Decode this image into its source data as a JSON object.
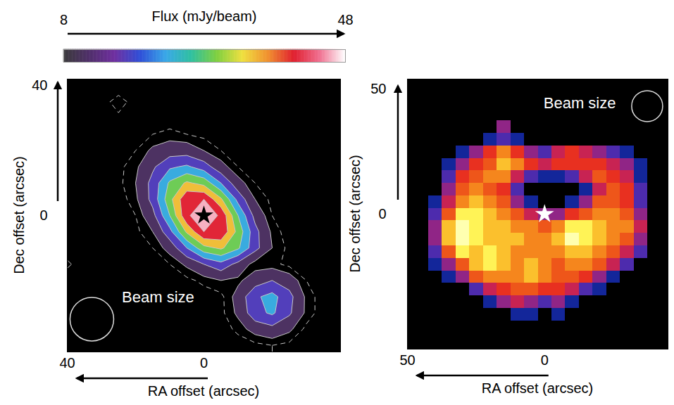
{
  "chart_data": [
    {
      "type": "contour",
      "x_label": "RA offset (arcsec)",
      "y_label": "Dec offset (arcsec)",
      "xlim": [
        40,
        -40
      ],
      "ylim": [
        -42,
        42
      ],
      "xticks": [
        40,
        0
      ],
      "yticks": [
        40,
        0
      ],
      "colorbar": {
        "label": "Flux (mJy/beam)",
        "range": [
          8,
          48
        ],
        "ticks": [
          8,
          48
        ]
      },
      "contour_levels": [
        5,
        8,
        14,
        20,
        26,
        32,
        38,
        44
      ],
      "dashed_levels": [
        5
      ],
      "ra": [
        40,
        35,
        30,
        25,
        20,
        15,
        10,
        5,
        0,
        -5,
        -10,
        -15,
        -20,
        -25,
        -30,
        -35,
        -40
      ],
      "dec": [
        40,
        35,
        30,
        25,
        20,
        15,
        10,
        5,
        0,
        -5,
        -10,
        -15,
        -20,
        -25,
        -30,
        -35,
        -40
      ],
      "flux": [
        [
          2,
          2,
          2,
          2,
          2,
          2,
          2,
          2,
          2,
          2,
          2,
          2,
          2,
          2,
          2,
          2,
          2
        ],
        [
          2,
          2,
          3,
          7,
          3,
          2,
          2,
          2,
          2,
          2,
          2,
          2,
          2,
          2,
          2,
          2,
          2
        ],
        [
          2,
          2,
          2,
          4,
          3,
          3,
          3,
          3,
          2,
          2,
          2,
          2,
          2,
          2,
          2,
          2,
          2
        ],
        [
          2,
          2,
          2,
          3,
          4,
          5,
          6,
          5,
          4,
          3,
          2,
          2,
          2,
          2,
          2,
          2,
          2
        ],
        [
          2,
          2,
          2,
          3,
          5,
          9,
          11,
          11,
          8,
          5,
          3,
          2,
          2,
          2,
          2,
          2,
          2
        ],
        [
          2,
          2,
          2,
          4,
          7,
          13,
          19,
          21,
          17,
          10,
          5,
          3,
          2,
          2,
          2,
          2,
          2
        ],
        [
          2,
          2,
          2,
          4,
          8,
          16,
          27,
          33,
          30,
          20,
          10,
          5,
          3,
          2,
          2,
          2,
          2
        ],
        [
          2,
          2,
          2,
          3,
          7,
          16,
          30,
          43,
          44,
          33,
          18,
          8,
          4,
          2,
          2,
          2,
          2
        ],
        [
          2,
          2,
          2,
          3,
          5,
          12,
          26,
          43,
          48,
          43,
          26,
          12,
          5,
          3,
          2,
          2,
          2
        ],
        [
          2,
          2,
          2,
          2,
          4,
          8,
          18,
          33,
          44,
          43,
          30,
          16,
          7,
          3,
          2,
          2,
          2
        ],
        [
          2,
          2,
          2,
          2,
          3,
          5,
          10,
          20,
          30,
          33,
          27,
          16,
          8,
          4,
          2,
          2,
          2
        ],
        [
          6,
          2,
          2,
          2,
          2,
          3,
          5,
          9,
          14,
          18,
          12,
          6,
          6,
          4,
          3,
          2,
          2
        ],
        [
          2,
          2,
          2,
          2,
          2,
          2,
          3,
          4,
          6,
          8,
          7,
          11,
          14,
          11,
          5,
          2,
          2
        ],
        [
          2,
          2,
          2,
          2,
          2,
          2,
          2,
          2,
          3,
          4,
          10,
          19,
          22,
          16,
          7,
          3,
          2
        ],
        [
          2,
          2,
          2,
          2,
          2,
          2,
          2,
          2,
          2,
          4,
          9,
          18,
          21,
          15,
          7,
          3,
          2
        ],
        [
          2,
          2,
          2,
          2,
          2,
          2,
          2,
          2,
          2,
          3,
          6,
          10,
          12,
          9,
          4,
          2,
          2
        ],
        [
          2,
          2,
          2,
          2,
          2,
          2,
          2,
          2,
          2,
          2,
          3,
          4,
          5,
          4,
          3,
          2,
          2
        ]
      ],
      "beam": {
        "label": "Beam size",
        "diameter": 12.8
      },
      "source": {
        "ra": 0,
        "dec": 0,
        "marker": "star",
        "color": "#000000"
      }
    },
    {
      "type": "image",
      "x_label": "RA offset (arcsec)",
      "y_label": "Dec offset (arcsec)",
      "xlim": [
        50,
        -45
      ],
      "ylim": [
        -54,
        54
      ],
      "xticks": [
        50,
        0
      ],
      "yticks": [
        50,
        0
      ],
      "intensity_range": [
        0,
        10
      ],
      "ra": [
        45,
        40,
        35,
        30,
        25,
        20,
        15,
        10,
        5,
        0,
        -5,
        -10,
        -15,
        -20,
        -25,
        -30,
        -35,
        -40
      ],
      "dec": [
        50,
        45,
        40,
        35,
        30,
        25,
        20,
        15,
        10,
        5,
        0,
        -5,
        -10,
        -15,
        -20,
        -25,
        -30,
        -35,
        -40,
        -45,
        -50
      ],
      "intensity": [
        [
          0,
          0,
          0,
          0,
          0,
          0,
          0,
          0,
          0,
          0,
          0,
          0,
          0,
          0,
          0,
          0,
          0,
          0
        ],
        [
          0,
          0,
          0,
          0,
          0,
          0,
          0,
          0,
          0,
          0,
          0,
          0,
          0,
          0,
          0,
          0,
          0,
          0
        ],
        [
          0,
          0,
          0,
          0,
          0,
          0,
          0,
          0,
          0,
          0,
          0,
          0,
          0,
          0,
          0,
          0,
          0,
          0
        ],
        [
          0,
          0,
          0,
          0,
          0,
          0,
          3,
          0,
          0,
          0,
          0,
          0,
          0,
          0,
          0,
          0,
          0,
          0
        ],
        [
          0,
          0,
          0,
          0,
          0,
          1,
          2,
          1,
          0,
          0,
          0,
          0,
          0,
          0,
          0,
          0,
          0,
          0
        ],
        [
          0,
          0,
          0,
          1,
          3,
          5,
          7,
          5,
          3,
          2,
          4,
          5,
          4,
          3,
          2,
          1,
          0,
          0
        ],
        [
          0,
          0,
          1,
          3,
          5,
          6,
          8,
          7,
          5,
          4,
          5,
          5,
          5,
          5,
          4,
          3,
          1,
          0
        ],
        [
          0,
          0,
          2,
          5,
          6,
          7,
          7,
          4,
          2,
          1,
          1,
          2,
          4,
          6,
          5,
          4,
          1,
          0
        ],
        [
          0,
          0,
          3,
          6,
          7,
          6,
          5,
          2,
          0,
          0,
          0,
          0,
          1,
          4,
          6,
          5,
          2,
          0
        ],
        [
          0,
          1,
          4,
          7,
          8,
          7,
          6,
          3,
          1,
          0,
          0,
          1,
          3,
          6,
          6,
          5,
          2,
          0
        ],
        [
          0,
          2,
          6,
          9,
          9,
          8,
          7,
          6,
          4,
          3,
          3,
          5,
          6,
          7,
          7,
          6,
          3,
          0
        ],
        [
          0,
          3,
          8,
          10,
          9,
          8,
          8,
          7,
          7,
          6,
          7,
          9,
          9,
          8,
          7,
          7,
          4,
          0
        ],
        [
          0,
          3,
          8,
          10,
          9,
          8,
          8,
          8,
          7,
          7,
          8,
          10,
          9,
          8,
          7,
          6,
          3,
          0
        ],
        [
          0,
          2,
          6,
          9,
          8,
          9,
          8,
          7,
          7,
          7,
          7,
          8,
          8,
          7,
          6,
          4,
          2,
          0
        ],
        [
          0,
          1,
          3,
          6,
          8,
          9,
          8,
          7,
          8,
          7,
          6,
          7,
          7,
          6,
          4,
          2,
          0,
          0
        ],
        [
          0,
          0,
          1,
          3,
          6,
          7,
          7,
          7,
          8,
          7,
          6,
          6,
          5,
          3,
          1,
          0,
          0,
          0
        ],
        [
          0,
          0,
          0,
          0,
          2,
          4,
          5,
          6,
          6,
          5,
          5,
          4,
          2,
          1,
          0,
          0,
          0,
          0
        ],
        [
          0,
          0,
          0,
          0,
          0,
          1,
          3,
          4,
          3,
          2,
          3,
          1,
          0,
          0,
          0,
          0,
          0,
          0
        ],
        [
          0,
          0,
          0,
          0,
          0,
          0,
          0,
          1,
          1,
          0,
          1,
          0,
          0,
          0,
          0,
          0,
          0,
          0
        ],
        [
          0,
          0,
          0,
          0,
          0,
          0,
          0,
          0,
          0,
          0,
          0,
          0,
          0,
          0,
          0,
          0,
          0,
          0
        ],
        [
          0,
          0,
          0,
          0,
          0,
          0,
          0,
          0,
          0,
          0,
          0,
          0,
          0,
          0,
          0,
          0,
          0,
          0
        ]
      ],
      "beam": {
        "label": "Beam size",
        "diameter": 11.3
      },
      "source": {
        "ra": 0,
        "dec": 0,
        "marker": "star",
        "color": "#ffffff"
      }
    }
  ]
}
